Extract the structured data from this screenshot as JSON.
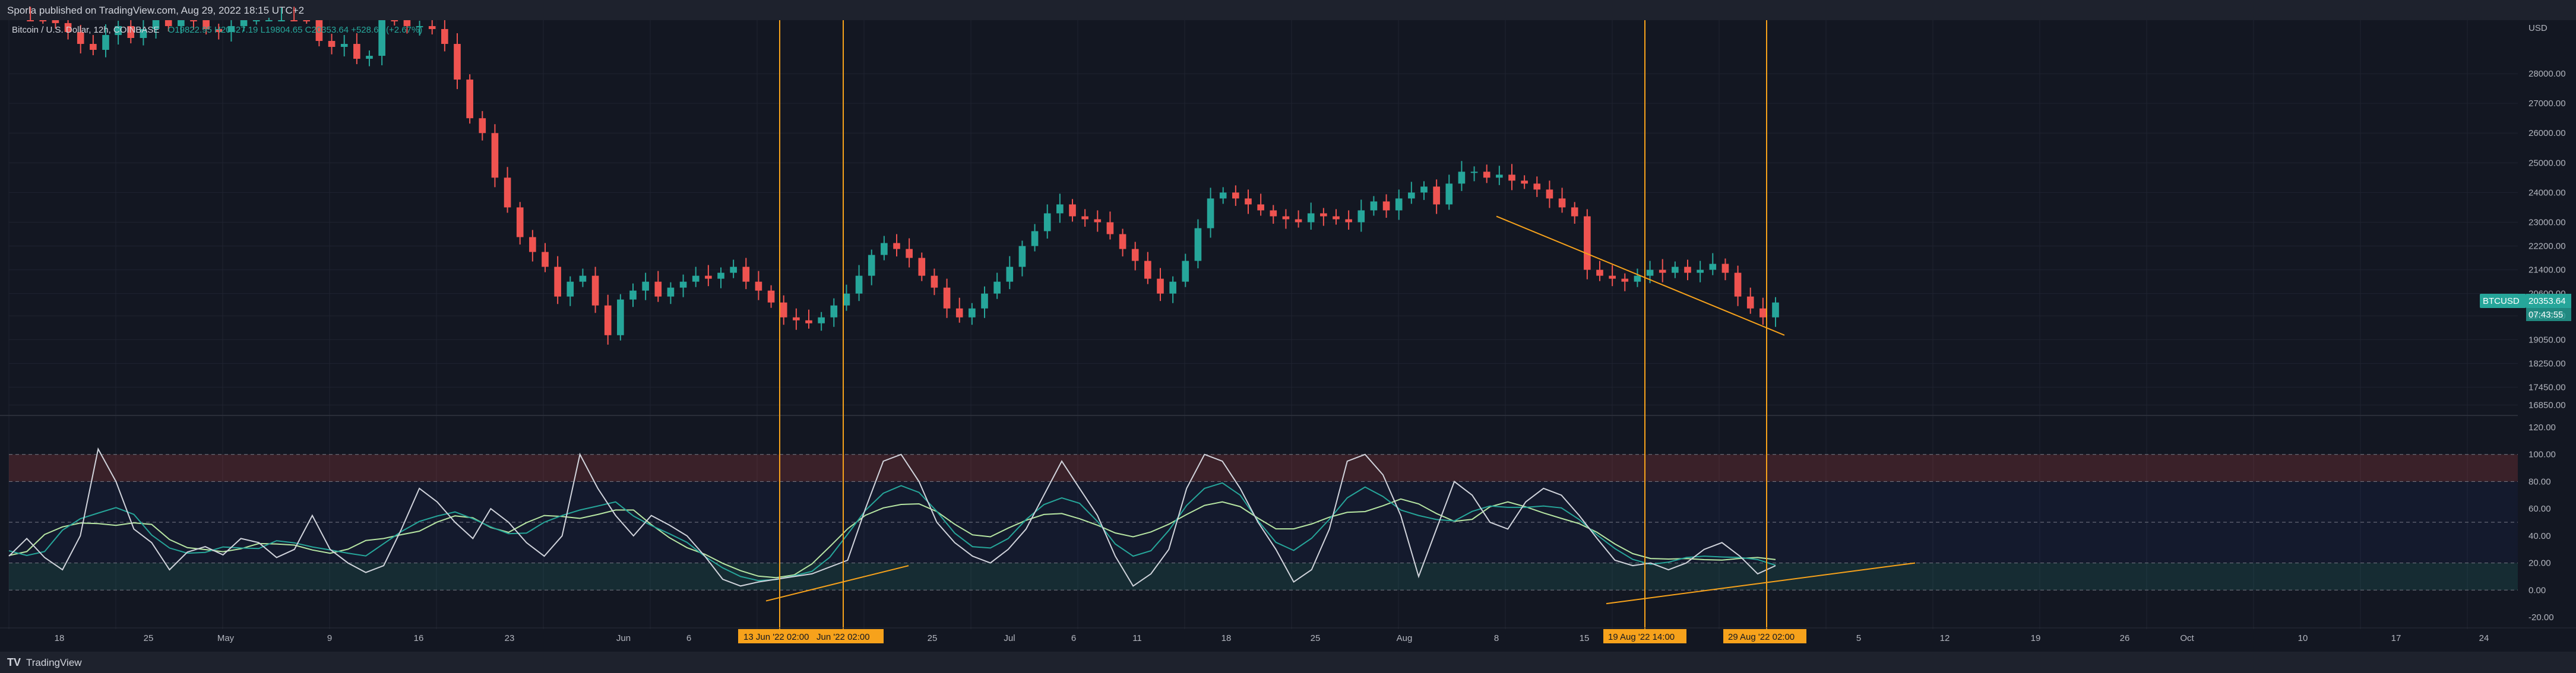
{
  "header": {
    "published": "Sporla published on TradingView.com, Aug 29, 2022 18:15 UTC+2"
  },
  "legend": {
    "symbol": "Bitcoin / U.S. Dollar, 12h, COINBASE",
    "ohlc": "O19822.95  H20427.19  L19804.65  C20353.64  +528.69 (+2.67%)"
  },
  "footer": {
    "brand": "TradingView",
    "logo": "TV"
  },
  "price_axis": {
    "currency": "USD",
    "labels": [
      "28000.00",
      "27000.00",
      "26000.00",
      "25000.00",
      "24000.00",
      "23000.00",
      "22200.00",
      "21400.00",
      "20600.00",
      "19850.00",
      "19050.00",
      "18250.00",
      "17450.00",
      "16850.00"
    ],
    "last_price_tag": "BTCUSD",
    "last_price": "20353.64",
    "countdown": "07:43:55"
  },
  "osc_axis": {
    "labels": [
      "120.00",
      "100.00",
      "80.00",
      "60.00",
      "40.00",
      "20.00",
      "0.00",
      "-20.00"
    ]
  },
  "time_axis": {
    "labels": [
      "18",
      "25",
      "May",
      "9",
      "16",
      "23",
      "Jun",
      "6",
      "20",
      "25",
      "Jul",
      "6",
      "11",
      "18",
      "25",
      "Aug",
      "8",
      "15",
      "5",
      "12",
      "19",
      "26",
      "Oct",
      "10",
      "17",
      "24"
    ],
    "highlights": [
      "13 Jun '22   02:00",
      "Jun '22   02:00",
      "19 Aug '22   14:00",
      "29 Aug '22   02:00"
    ]
  },
  "colors": {
    "background": "#131722",
    "up": "#26a69a",
    "down": "#ef5350",
    "vline": "#f7a21b",
    "trend": "#f7a21b",
    "osc_main": "#d1d4dc",
    "osc_signal": "#26a69a",
    "osc_slow": "#b7e6a3"
  },
  "chart_data": {
    "type": "line",
    "title": "",
    "xlabel": "",
    "ylabel": "",
    "price_ylim": [
      16500,
      29000
    ],
    "osc_ylim": [
      -20,
      120
    ],
    "price_close_series": [
      31000,
      30500,
      30000,
      29700,
      29400,
      29000,
      28800,
      29300,
      29600,
      29200,
      29500,
      29800,
      29600,
      30100,
      29800,
      29500,
      29400,
      29600,
      29900,
      30200,
      30400,
      31200,
      30500,
      30000,
      29100,
      28900,
      29000,
      28500,
      28600,
      30000,
      29800,
      29600,
      29600,
      29500,
      29000,
      27800,
      26500,
      26000,
      24500,
      23500,
      22500,
      22000,
      21500,
      20500,
      21000,
      21200,
      20200,
      19200,
      20400,
      20700,
      21000,
      20500,
      20800,
      21000,
      21200,
      21100,
      21300,
      21500,
      21000,
      20700,
      20300,
      19800,
      19700,
      19600,
      19800,
      20200,
      20600,
      21200,
      21900,
      22300,
      22100,
      21800,
      21200,
      20800,
      20100,
      19800,
      20100,
      20600,
      21000,
      21500,
      22200,
      22700,
      23300,
      23600,
      23200,
      23100,
      23000,
      22600,
      22100,
      21700,
      21100,
      20600,
      21000,
      21700,
      22800,
      23800,
      24000,
      23800,
      23600,
      23400,
      23200,
      23100,
      23000,
      23300,
      23200,
      23100,
      23000,
      23400,
      23700,
      23400,
      23800,
      24000,
      24200,
      23600,
      24300,
      24700,
      24700,
      24500,
      24600,
      24400,
      24300,
      24100,
      23800,
      23500,
      23200,
      21400,
      21200,
      21100,
      21000,
      21200,
      21400,
      21300,
      21500,
      21300,
      21400,
      21600,
      21300,
      20500,
      20100,
      19800,
      20300
    ],
    "oscillator_series": [
      25,
      38,
      24,
      15,
      40,
      104,
      80,
      45,
      35,
      15,
      28,
      32,
      26,
      38,
      35,
      24,
      30,
      55,
      30,
      20,
      13,
      18,
      45,
      75,
      65,
      50,
      38,
      60,
      50,
      35,
      25,
      40,
      100,
      75,
      55,
      40,
      55,
      48,
      40,
      25,
      8,
      3,
      6,
      8,
      10,
      12,
      17,
      22,
      60,
      95,
      100,
      80,
      50,
      35,
      25,
      20,
      30,
      45,
      70,
      95,
      75,
      55,
      25,
      3,
      12,
      30,
      75,
      100,
      95,
      75,
      50,
      30,
      6,
      15,
      45,
      95,
      100,
      85,
      55,
      10,
      45,
      80,
      70,
      50,
      45,
      65,
      75,
      70,
      55,
      38,
      22,
      18,
      20,
      15,
      20,
      30,
      35,
      25,
      12,
      18
    ],
    "annotations": [
      "13 Jun '22",
      "19 Aug '22",
      "29 Aug '22"
    ]
  }
}
